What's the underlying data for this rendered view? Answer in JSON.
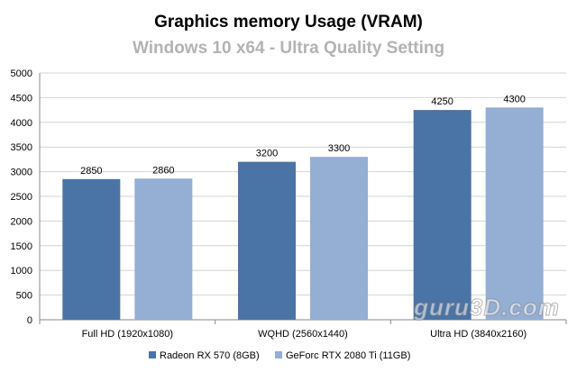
{
  "chart_data": {
    "type": "bar",
    "title": "Graphics memory  Usage (VRAM)",
    "subtitle": "Windows 10 x64 - Ultra Quality Setting",
    "categories": [
      "Full HD (1920x1080)",
      "WQHD (2560x1440)",
      "Ultra HD (3840x2160)"
    ],
    "series": [
      {
        "name": "Radeon RX 570 (8GB)",
        "values": [
          2850,
          3200,
          4250
        ],
        "color": "#4a74a6"
      },
      {
        "name": "GeForc RTX 2080 Ti (11GB)",
        "values": [
          2860,
          3300,
          4300
        ],
        "color": "#94aed4"
      }
    ],
    "ylim": [
      0,
      5000
    ],
    "ytick_step": 500,
    "yticks": [
      "0",
      "500",
      "1000",
      "1500",
      "2000",
      "2500",
      "3000",
      "3500",
      "4000",
      "4500",
      "5000"
    ],
    "data_labels": [
      [
        "2850",
        "3200",
        "4250"
      ],
      [
        "2860",
        "3300",
        "4300"
      ]
    ],
    "grid": true,
    "legend_position": "bottom",
    "title_color": "#000000",
    "subtitle_color": "#b3b3b3",
    "watermark": "guru3D.com"
  }
}
